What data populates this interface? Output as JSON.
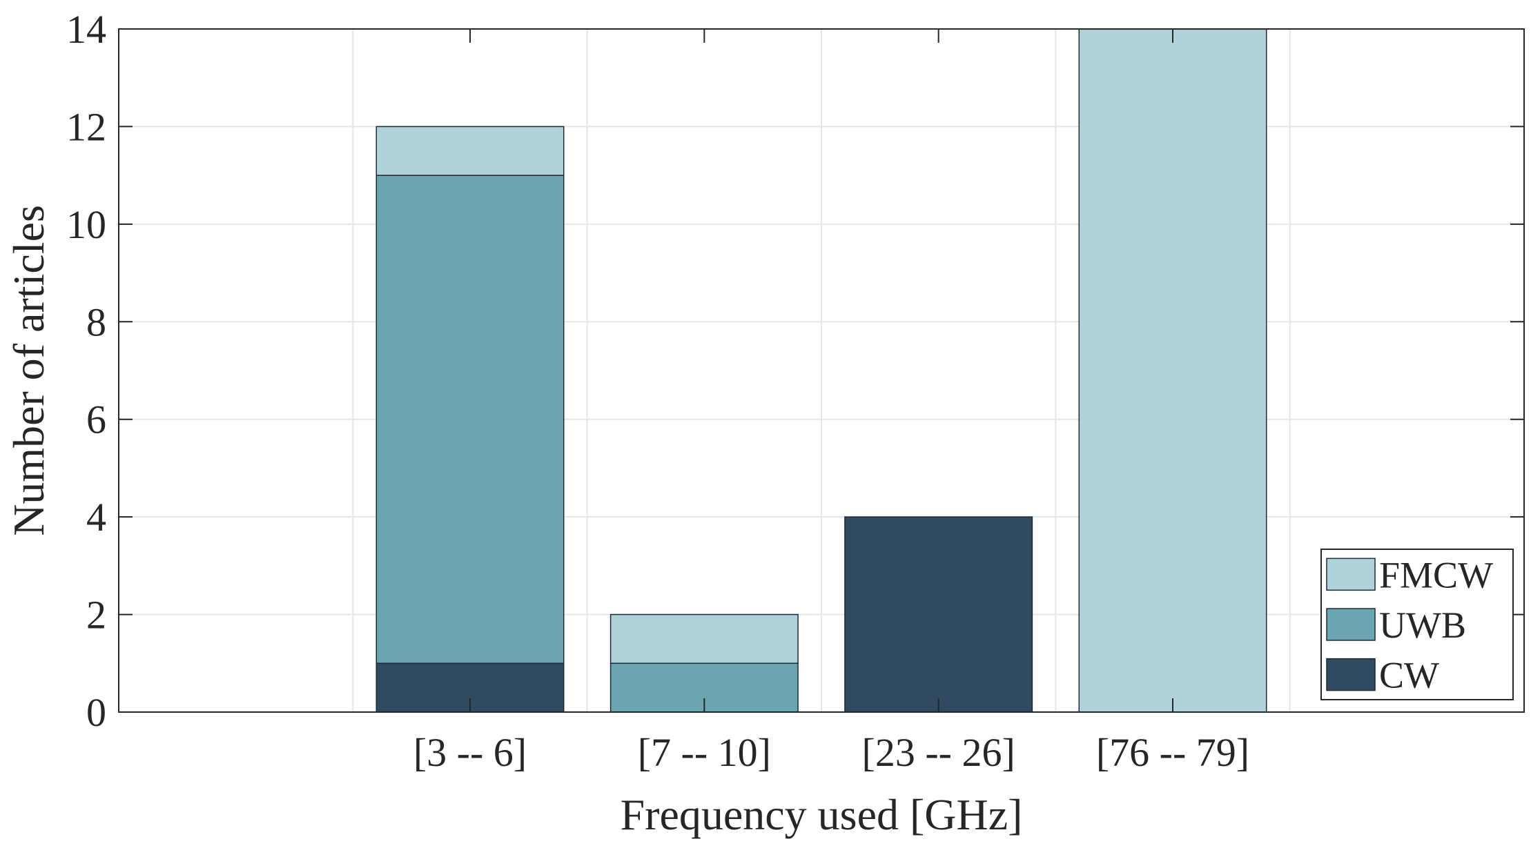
{
  "chart_data": {
    "type": "bar",
    "stacked": true,
    "title": "",
    "xlabel": "Frequency used [GHz]",
    "ylabel": "Number of articles",
    "categories": [
      "[3 -- 6]",
      "[7 -- 10]",
      "[23 -- 26]",
      "[76 -- 79]"
    ],
    "series": [
      {
        "name": "CW",
        "values": [
          1,
          0,
          4,
          0
        ],
        "color": "#2f4a61"
      },
      {
        "name": "UWB",
        "values": [
          10,
          1,
          0,
          0
        ],
        "color": "#6aa5b1"
      },
      {
        "name": "FMCW",
        "values": [
          1,
          1,
          0,
          14
        ],
        "color": "#b0d2da"
      }
    ],
    "legend_order": [
      "FMCW",
      "UWB",
      "CW"
    ],
    "legend_position": "bottom-right",
    "xlim": [
      0,
      6
    ],
    "ylim": [
      0,
      14
    ],
    "yticks": [
      0,
      2,
      4,
      6,
      8,
      10,
      12,
      14
    ],
    "grid": true
  }
}
